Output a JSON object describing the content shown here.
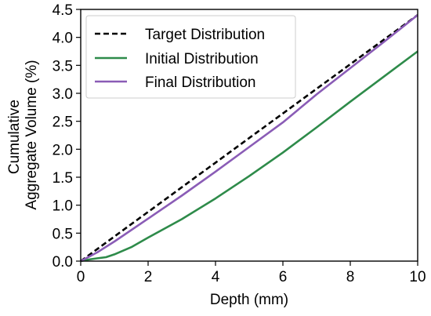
{
  "chart_data": {
    "type": "line",
    "xlabel": "Depth (mm)",
    "ylabel_lines": [
      "Cumulative",
      "Aggregate Volume (%)"
    ],
    "xlim": [
      0,
      10
    ],
    "ylim": [
      0,
      4.5
    ],
    "xticks": [
      0,
      2,
      4,
      6,
      8,
      10
    ],
    "yticks": [
      0.0,
      0.5,
      1.0,
      1.5,
      2.0,
      2.5,
      3.0,
      3.5,
      4.0,
      4.5
    ],
    "xtick_labels": [
      "0",
      "2",
      "4",
      "6",
      "8",
      "10"
    ],
    "ytick_labels": [
      "0.0",
      "0.5",
      "1.0",
      "1.5",
      "2.0",
      "2.5",
      "3.0",
      "3.5",
      "4.0",
      "4.5"
    ],
    "grid": false,
    "legend_position": "top-left",
    "series": [
      {
        "name": "Target Distribution",
        "color": "#000000",
        "dash": "dashed",
        "x": [
          0,
          10
        ],
        "y": [
          0.0,
          4.4
        ]
      },
      {
        "name": "Initial Distribution",
        "color": "#2e8b4a",
        "dash": "solid",
        "x": [
          0,
          0.25,
          0.5,
          0.75,
          1.0,
          1.5,
          2.0,
          3.0,
          4.0,
          5.0,
          6.0,
          7.0,
          8.0,
          9.0,
          10.0
        ],
        "y": [
          0.0,
          0.03,
          0.05,
          0.07,
          0.12,
          0.25,
          0.42,
          0.75,
          1.12,
          1.52,
          1.94,
          2.39,
          2.85,
          3.3,
          3.75
        ]
      },
      {
        "name": "Final Distribution",
        "color": "#8a5cb6",
        "dash": "solid",
        "x": [
          0,
          0.5,
          1.0,
          2.0,
          3.0,
          4.0,
          5.0,
          6.0,
          7.0,
          8.0,
          9.0,
          10.0
        ],
        "y": [
          0.0,
          0.16,
          0.35,
          0.76,
          1.17,
          1.6,
          2.04,
          2.48,
          2.98,
          3.45,
          3.92,
          4.4
        ]
      }
    ]
  }
}
